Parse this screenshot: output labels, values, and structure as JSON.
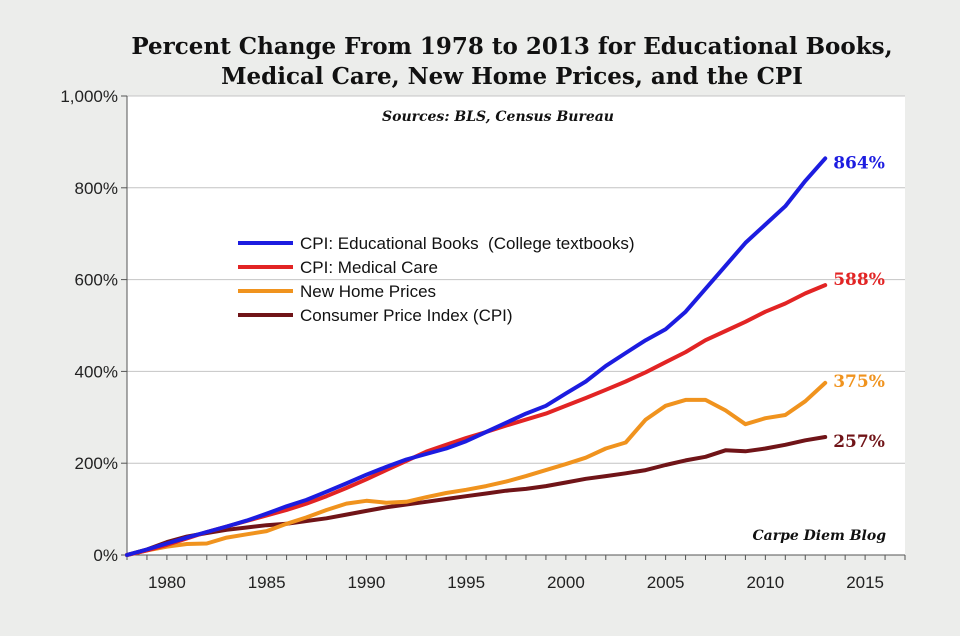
{
  "chart_data": {
    "type": "line",
    "title_line1": "Percent Change From 1978 to 2013 for Educational Books,",
    "title_line2": "Medical Care, New Home Prices, and the CPI",
    "subtitle": "Sources: BLS, Census Bureau",
    "credit": "Carpe Diem Blog",
    "xlabel": "",
    "ylabel": "",
    "xlim": [
      1978,
      2017
    ],
    "ylim": [
      0,
      1000
    ],
    "x_ticks": [
      1980,
      1985,
      1990,
      1995,
      2000,
      2005,
      2010,
      2015
    ],
    "y_ticks": [
      {
        "value": 0,
        "label": "0%"
      },
      {
        "value": 200,
        "label": "200%"
      },
      {
        "value": 400,
        "label": "400%"
      },
      {
        "value": 600,
        "label": "600%"
      },
      {
        "value": 800,
        "label": "800%"
      },
      {
        "value": 1000,
        "label": "1,000%"
      }
    ],
    "grid": true,
    "legend_position": "center-left",
    "x": [
      1978,
      1979,
      1980,
      1981,
      1982,
      1983,
      1984,
      1985,
      1986,
      1987,
      1988,
      1989,
      1990,
      1991,
      1992,
      1993,
      1994,
      1995,
      1996,
      1997,
      1998,
      1999,
      2000,
      2001,
      2002,
      2003,
      2004,
      2005,
      2006,
      2007,
      2008,
      2009,
      2010,
      2011,
      2012,
      2013
    ],
    "series": [
      {
        "name": "CPI: Educational Books  (College textbooks)",
        "color": "#1c1ce0",
        "end_label": "864%",
        "values": [
          0,
          12,
          25,
          38,
          50,
          62,
          75,
          90,
          106,
          120,
          138,
          156,
          175,
          192,
          208,
          220,
          232,
          248,
          268,
          288,
          308,
          325,
          352,
          378,
          412,
          440,
          468,
          492,
          530,
          580,
          630,
          680,
          720,
          760,
          815,
          864
        ]
      },
      {
        "name": "CPI: Medical Care",
        "color": "#e22424",
        "end_label": "588%",
        "values": [
          0,
          10,
          22,
          36,
          50,
          62,
          74,
          86,
          98,
          112,
          128,
          146,
          165,
          185,
          205,
          225,
          240,
          255,
          268,
          282,
          295,
          308,
          325,
          342,
          360,
          378,
          398,
          420,
          442,
          468,
          488,
          508,
          530,
          548,
          570,
          588
        ]
      },
      {
        "name": "New Home Prices",
        "color": "#f0931e",
        "end_label": "375%",
        "values": [
          0,
          10,
          18,
          24,
          25,
          38,
          45,
          52,
          68,
          82,
          98,
          112,
          118,
          114,
          116,
          126,
          135,
          142,
          150,
          160,
          172,
          185,
          198,
          212,
          232,
          245,
          295,
          325,
          338,
          338,
          315,
          285,
          298,
          305,
          335,
          375
        ]
      },
      {
        "name": "Consumer Price Index (CPI)",
        "color": "#701418",
        "end_label": "257%",
        "values": [
          0,
          12,
          28,
          40,
          48,
          55,
          60,
          65,
          68,
          74,
          80,
          88,
          96,
          104,
          110,
          116,
          122,
          128,
          134,
          140,
          144,
          150,
          158,
          166,
          172,
          178,
          185,
          196,
          206,
          214,
          228,
          226,
          232,
          240,
          250,
          257
        ]
      }
    ]
  }
}
